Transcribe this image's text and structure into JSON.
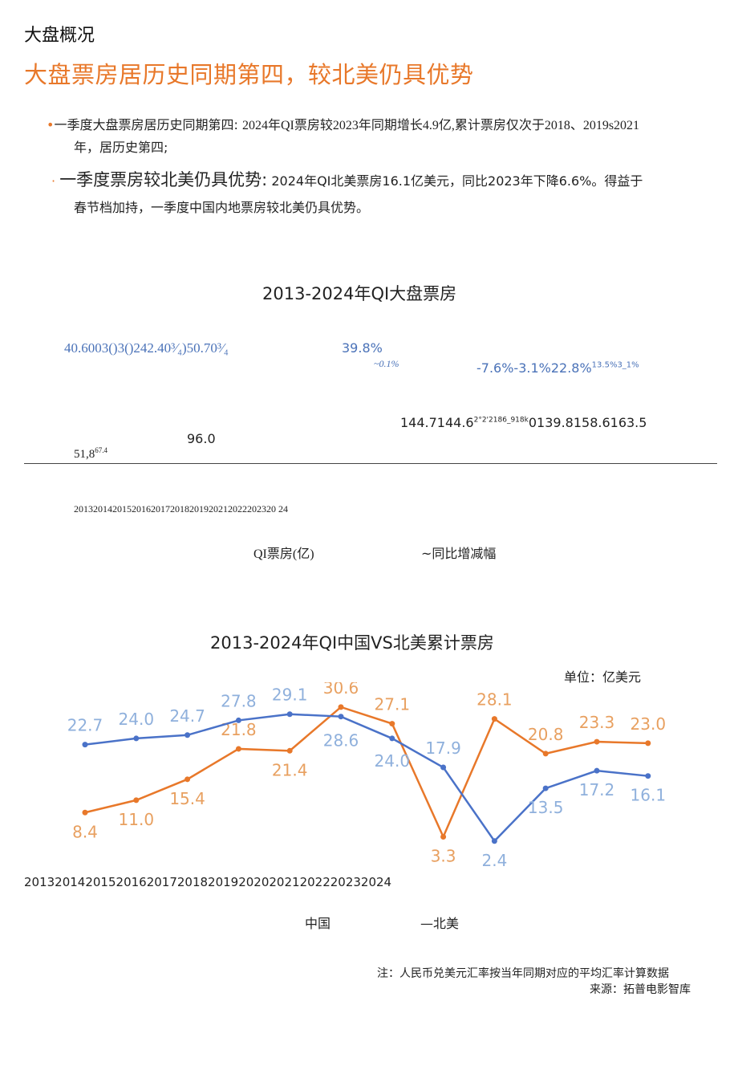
{
  "section_label": "大盘概况",
  "headline": "大盘票房居历史同期第四，较北美仍具优势",
  "bullets": [
    {
      "lead": "一季度大盘票房居历史同期第四:",
      "text_1": "2024年QI票房较2023年同期增长4.9亿,累计票房仅次于2018、2019s2021",
      "text_2": "年，居历史第四;"
    },
    {
      "lead": "一季度票房较北美仍具优势:",
      "text_1": "2024年QI北美票房16.1亿美元，同比2023年下降6.6%。得益于",
      "text_2": "春节档加持，一季度中国内地票房较北美仍具优势。"
    }
  ],
  "chart1": {
    "title": "2013-2024年QI大盘票房",
    "growth_labels_a": "40.6003()3()242.40³⁄₄)50.70³⁄₄",
    "growth_label_b": "39.8%",
    "growth_label_b_small": "~0.1%",
    "growth_labels_c": "-7.6%-3.1%22.8%",
    "growth_labels_c_small": "13.5%3_1%",
    "value_labels_left": "51,8",
    "value_labels_left_sup": "67.4",
    "value_label_mid": "96.0",
    "value_labels_right_a": "144.7144.6",
    "value_labels_right_sup": "2°2'2186_918k",
    "value_labels_right_b": "0139.8158.6163.5",
    "years_text": "201320142015201620172018201920212022202320 24",
    "legend_bar": "QI票房(亿)",
    "legend_line": "~同比增减幅"
  },
  "chart_data": {
    "type": "line",
    "title": "2013-2024年QI中国VS北美累计票房",
    "unit_label": "单位：亿美元",
    "categories": [
      "2013",
      "2014",
      "2015",
      "2016",
      "2017",
      "2018",
      "2019",
      "2020",
      "2021",
      "2022",
      "2023",
      "2024"
    ],
    "x_axis_text": "201320142015201620172018201920202021202220232024",
    "series": [
      {
        "name": "中国",
        "color": "#e8782a",
        "values": [
          8.4,
          11.0,
          15.4,
          21.8,
          21.4,
          30.6,
          27.1,
          3.3,
          28.1,
          20.8,
          23.3,
          23.0
        ],
        "labels": [
          "8.4",
          "11.0",
          "15.4",
          "21.8",
          "21.4",
          "30.6",
          "27.1",
          "3.3",
          "28.1",
          "20.8",
          "23.3",
          "23.0"
        ]
      },
      {
        "name": "北美",
        "color": "#4a72c8",
        "values": [
          22.7,
          24.0,
          24.7,
          27.8,
          29.1,
          28.6,
          24.0,
          17.9,
          2.4,
          13.5,
          17.2,
          16.1
        ],
        "labels": [
          "22.7",
          "24.0",
          "24.7",
          "27.8",
          "29.1",
          "28.6",
          "24.0",
          "17.9",
          "2.4",
          "13.5",
          "17.2",
          "16.1"
        ]
      }
    ],
    "legend_cn": "中国",
    "legend_na": "—北美",
    "label_colors": {
      "cn": "#e8a060",
      "na": "#8fb0dc"
    }
  },
  "footnote": {
    "note": "注：人民币兑美元汇率按当年同期对应的平均汇率计算数据",
    "source": "来源：拓普电影智库"
  }
}
